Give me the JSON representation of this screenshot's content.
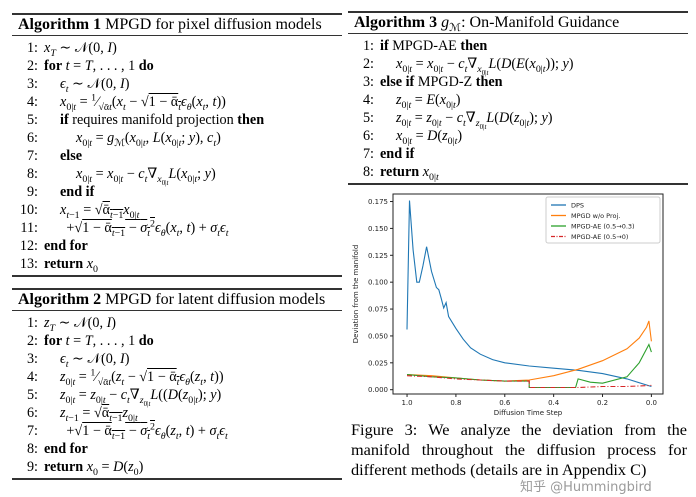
{
  "alg1": {
    "title_bold": "Algorithm 1",
    "title": " MPGD for pixel diffusion models",
    "lines": [
      {
        "n": "1:",
        "indent": 0,
        "html": "<i>x<sub>T</sub></i> ∼ 𝒩(0, <i>I</i>)"
      },
      {
        "n": "2:",
        "indent": 0,
        "html": "<b>for</b> <i>t</i> = <i>T</i>, . . . , 1 <b>do</b>"
      },
      {
        "n": "3:",
        "indent": 1,
        "html": "<i>ϵ<sub>t</sub></i> ∼ 𝒩(0, <i>I</i>)"
      },
      {
        "n": "4:",
        "indent": 1,
        "html": "<i>x</i><sub>0|<i>t</i></sub> = <sup>1</sup>⁄<sub>√ᾱ<i>t</i></sub>(<i>x<sub>t</sub></i> − √<span style='text-decoration:overline'>1 − ᾱ<sub><i>t</i></sub></span><i>ϵ<sub>θ</sub></i>(<i>x<sub>t</sub></i>, <i>t</i>))"
      },
      {
        "n": "5:",
        "indent": 1,
        "html": "<b>if</b> requires manifold projection <b>then</b>"
      },
      {
        "n": "6:",
        "indent": 2,
        "html": "<i>x</i><sub>0|<i>t</i></sub> = <i>g</i><sub>ℳ</sub>(<i>x</i><sub>0|<i>t</i></sub>, <i>L</i>(<i>x</i><sub>0|<i>t</i></sub>; <i>y</i>), <i>c<sub>t</sub></i>)"
      },
      {
        "n": "7:",
        "indent": 1,
        "html": "<b>else</b>"
      },
      {
        "n": "8:",
        "indent": 2,
        "html": "<i>x</i><sub>0|<i>t</i></sub> = <i>x</i><sub>0|<i>t</i></sub> − <i>c<sub>t</sub></i>∇<sub><i>x</i><sub>0|<i>t</i></sub></sub><i>L</i>(<i>x</i><sub>0|<i>t</i></sub>; <i>y</i>)"
      },
      {
        "n": "9:",
        "indent": 1,
        "html": "<b>end if</b>"
      },
      {
        "n": "10:",
        "indent": 1,
        "html": "<i>x</i><sub><i>t</i>−1</sub> = √<span style='text-decoration:overline'>ᾱ<sub><i>t</i>−1</sub></span><i>x</i><sub>0|<i>t</i></sub>"
      },
      {
        "n": "11:",
        "indent": 1.4,
        "html": "+√<span style='text-decoration:overline'>1 − ᾱ<sub><i>t</i>−1</sub> − <i>σ</i><sub><i>t</i></sub><sup>2</sup></span><i>ϵ<sub>θ</sub></i>(<i>x<sub>t</sub></i>, <i>t</i>) + <i>σ<sub>t</sub>ϵ<sub>t</sub></i>"
      },
      {
        "n": "12:",
        "indent": 0,
        "html": "<b>end for</b>"
      },
      {
        "n": "13:",
        "indent": 0,
        "html": "<b>return</b> <i>x</i><sub>0</sub>"
      }
    ]
  },
  "alg2": {
    "title_bold": "Algorithm 2",
    "title": " MPGD for latent diffusion models",
    "lines": [
      {
        "n": "1:",
        "indent": 0,
        "html": "<i>z<sub>T</sub></i> ∼ 𝒩(0, <i>I</i>)"
      },
      {
        "n": "2:",
        "indent": 0,
        "html": "<b>for</b> <i>t</i> = <i>T</i>, . . . , 1 <b>do</b>"
      },
      {
        "n": "3:",
        "indent": 1,
        "html": "<i>ϵ<sub>t</sub></i> ∼ 𝒩(0, <i>I</i>)"
      },
      {
        "n": "4:",
        "indent": 1,
        "html": "<i>z</i><sub>0|<i>t</i></sub> = <sup>1</sup>⁄<sub>√ᾱ<i>t</i></sub>(<i>z<sub>t</sub></i> − √<span style='text-decoration:overline'>1 − ᾱ<sub><i>t</i></sub></span><i>ϵ<sub>θ</sub></i>(<i>z<sub>t</sub></i>, <i>t</i>))"
      },
      {
        "n": "5:",
        "indent": 1,
        "html": "<i>z</i><sub>0|<i>t</i></sub> = <i>z</i><sub>0|<i>t</i></sub> − <i>c<sub>t</sub></i>∇<sub><i>z</i><sub>0|<i>t</i></sub></sub><i>L</i>((<i>D</i>(<i>z</i><sub>0|<i>t</i></sub>); <i>y</i>)"
      },
      {
        "n": "6:",
        "indent": 1,
        "html": "<i>z</i><sub><i>t</i>−1</sub> = √<span style='text-decoration:overline'>ᾱ<sub><i>t</i>−1</sub></span><i>z</i><sub>0|<i>t</i></sub>"
      },
      {
        "n": "7:",
        "indent": 1.4,
        "html": "+√<span style='text-decoration:overline'>1 − ᾱ<sub><i>t</i>−1</sub> − <i>σ</i><sub><i>t</i></sub><sup>2</sup></span><i>ϵ<sub>θ</sub></i>(<i>z<sub>t</sub></i>, <i>t</i>) + <i>σ<sub>t</sub>ϵ<sub>t</sub></i>"
      },
      {
        "n": "8:",
        "indent": 0,
        "html": "<b>end for</b>"
      },
      {
        "n": "9:",
        "indent": 0,
        "html": "<b>return</b> <i>x</i><sub>0</sub> = <i>D</i>(<i>z</i><sub>0</sub>)"
      }
    ]
  },
  "alg3": {
    "title_bold": "Algorithm 3",
    "title": " g_M: On-Manifold Guidance",
    "title_html": " <i>g</i><sub>ℳ</sub>: On-Manifold Guidance",
    "lines": [
      {
        "n": "1:",
        "indent": 0,
        "html": "<b>if</b> MPGD-AE <b>then</b>"
      },
      {
        "n": "2:",
        "indent": 1,
        "html": "<i>x</i><sub>0|<i>t</i></sub> = <i>x</i><sub>0|<i>t</i></sub> − <i>c<sub>t</sub></i>∇<sub><i>x</i><sub>0|<i>t</i></sub></sub><i>L</i>(<i>D</i>(<i>E</i>(<i>x</i><sub>0|<i>t</i></sub>)); <i>y</i>)"
      },
      {
        "n": "3:",
        "indent": 0,
        "html": "<b>else if</b> MPGD-Z <b>then</b>"
      },
      {
        "n": "4:",
        "indent": 1,
        "html": "<i>z</i><sub>0|<i>t</i></sub> = <i>E</i>(<i>x</i><sub>0|<i>t</i></sub>)"
      },
      {
        "n": "5:",
        "indent": 1,
        "html": "<i>z</i><sub>0|<i>t</i></sub> = <i>z</i><sub>0|<i>t</i></sub> − <i>c<sub>t</sub></i>∇<sub><i>z</i><sub>0|<i>t</i></sub></sub><i>L</i>(<i>D</i>(<i>z</i><sub>0|<i>t</i></sub>); <i>y</i>)"
      },
      {
        "n": "6:",
        "indent": 1,
        "html": "<i>x</i><sub>0|<i>t</i></sub> = <i>D</i>(<i>z</i><sub>0|<i>t</i></sub>)"
      },
      {
        "n": "7:",
        "indent": 0,
        "html": "<b>end if</b>"
      },
      {
        "n": "8:",
        "indent": 0,
        "html": "<b>return</b> <i>x</i><sub>0|<i>t</i></sub>"
      }
    ]
  },
  "caption": "Figure 3:  We analyze the deviation from the manifold throughout the diffusion process for different methods (details are in Appendix C)",
  "watermark": "知乎 @Hummingbird",
  "chart_data": {
    "type": "line",
    "title": "",
    "xlabel": "Diffusion Time Step",
    "ylabel": "Deviation from the manifold",
    "xlim": [
      1.0,
      0.0
    ],
    "x_reversed": true,
    "ylim": [
      -0.004,
      0.182
    ],
    "xticks": [
      "1.0",
      "0.8",
      "0.6",
      "0.4",
      "0.2",
      "0.0"
    ],
    "xtick_values": [
      1.0,
      0.8,
      0.6,
      0.4,
      0.2,
      0.0
    ],
    "yticks": [
      "0.000",
      "0.025",
      "0.050",
      "0.075",
      "0.100",
      "0.125",
      "0.150",
      "0.175"
    ],
    "ytick_values": [
      0,
      0.025,
      0.05,
      0.075,
      0.1,
      0.125,
      0.15,
      0.175
    ],
    "grid": false,
    "legend_position": "top-right",
    "series": [
      {
        "name": "DPS",
        "color": "#1f77b4",
        "dash": "solid",
        "x": [
          1.0,
          0.99,
          0.975,
          0.96,
          0.95,
          0.935,
          0.92,
          0.9,
          0.88,
          0.87,
          0.86,
          0.85,
          0.84,
          0.83,
          0.8,
          0.77,
          0.74,
          0.7,
          0.65,
          0.6,
          0.5,
          0.4,
          0.3,
          0.2,
          0.1,
          0.0
        ],
        "y": [
          0.056,
          0.176,
          0.13,
          0.1,
          0.1,
          0.115,
          0.133,
          0.11,
          0.095,
          0.093,
          0.085,
          0.076,
          0.081,
          0.068,
          0.057,
          0.047,
          0.039,
          0.033,
          0.028,
          0.025,
          0.022,
          0.02,
          0.018,
          0.015,
          0.01,
          0.003
        ]
      },
      {
        "name": "MPGD w/o Proj.",
        "color": "#ff7f0e",
        "dash": "solid",
        "x": [
          1.0,
          0.9,
          0.8,
          0.7,
          0.6,
          0.5,
          0.4,
          0.3,
          0.2,
          0.1,
          0.05,
          0.02,
          0.01,
          0.0
        ],
        "y": [
          0.014,
          0.013,
          0.011,
          0.009,
          0.008,
          0.009,
          0.013,
          0.019,
          0.027,
          0.038,
          0.048,
          0.058,
          0.064,
          0.045
        ]
      },
      {
        "name": "MPGD-AE (0.5→0.3)",
        "color": "#2ca02c",
        "dash": "solid",
        "x": [
          1.0,
          0.9,
          0.8,
          0.7,
          0.6,
          0.5,
          0.5,
          0.31,
          0.3,
          0.25,
          0.2,
          0.1,
          0.05,
          0.01,
          0.0
        ],
        "y": [
          0.014,
          0.012,
          0.011,
          0.009,
          0.008,
          0.008,
          0.002,
          0.002,
          0.01,
          0.007,
          0.006,
          0.012,
          0.025,
          0.042,
          0.035
        ]
      },
      {
        "name": "MPGD-AE (0.5→0)",
        "color": "#d62728",
        "dash": "dashdot",
        "x": [
          1.0,
          0.9,
          0.8,
          0.7,
          0.6,
          0.5,
          0.5,
          0.3,
          0.2,
          0.1,
          0.0
        ],
        "y": [
          0.013,
          0.012,
          0.01,
          0.009,
          0.008,
          0.008,
          0.002,
          0.002,
          0.003,
          0.003,
          0.004
        ]
      }
    ]
  }
}
